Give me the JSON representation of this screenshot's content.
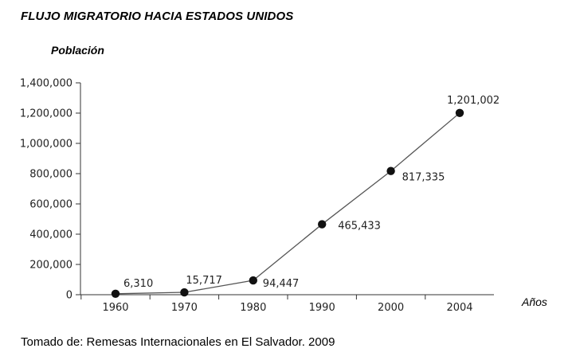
{
  "chart_data": {
    "type": "line",
    "title": "FLUJO MIGRATORIO HACIA ESTADOS UNIDOS",
    "ylabel": "Población",
    "xlabel": "Años",
    "categories": [
      "1960",
      "1970",
      "1980",
      "1990",
      "2000",
      "2004"
    ],
    "series": [
      {
        "values": [
          6310,
          15717,
          94447,
          465433,
          817335,
          1201002
        ],
        "labels": [
          "6,310",
          "15,717",
          "94,447",
          "465,433",
          "817,335",
          "1,201,002"
        ]
      }
    ],
    "ylim": [
      0,
      1400000
    ],
    "y_ticks": [
      0,
      200000,
      400000,
      600000,
      800000,
      1000000,
      1200000,
      1400000
    ],
    "y_tick_labels": [
      "0",
      "200,000",
      "400,000",
      "600,000",
      "800,000",
      "1,000,000",
      "1,200,000",
      "1,400,000"
    ],
    "grid": false,
    "line_color": "#555555",
    "marker_color": "#111111"
  },
  "source": "Tomado de: Remesas Internacionales en El Salvador. 2009"
}
